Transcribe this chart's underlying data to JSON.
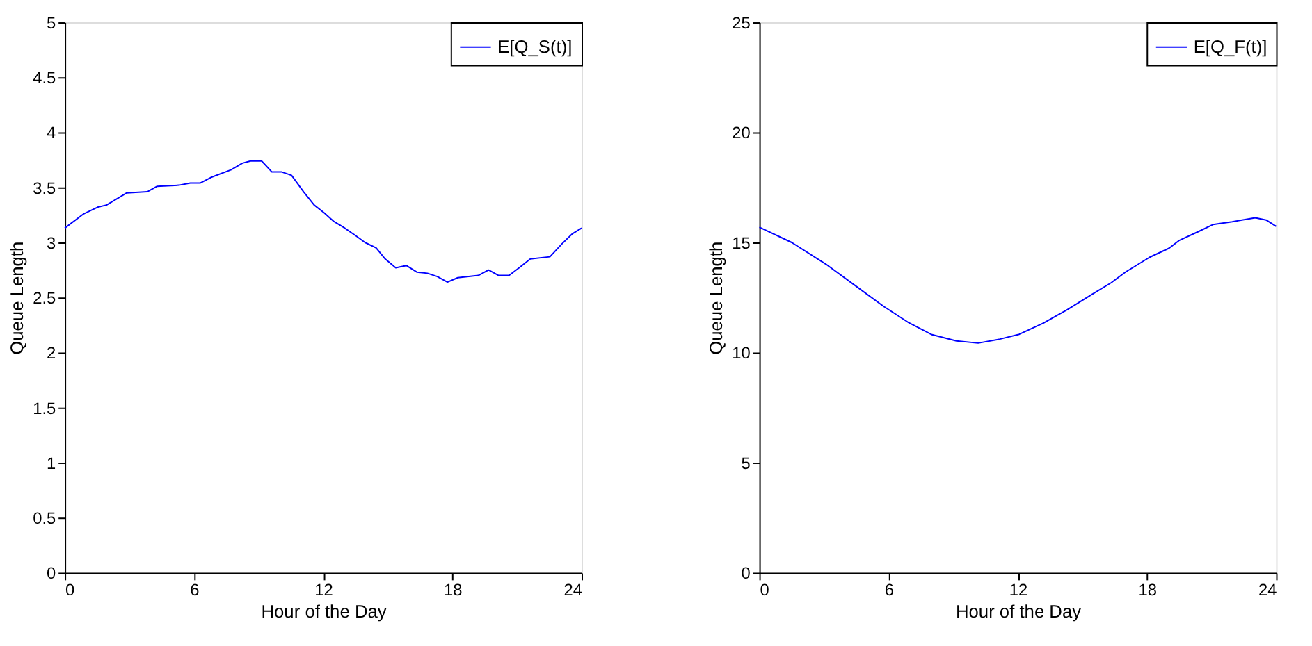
{
  "chart_data": [
    {
      "type": "line",
      "xlabel": "Hour of the Day",
      "ylabel": "Queue Length",
      "xlim": [
        0,
        24
      ],
      "xticks": [
        0,
        6,
        12,
        18,
        24
      ],
      "ylim": [
        0,
        5
      ],
      "yticks": [
        0,
        0.5,
        1,
        1.5,
        2,
        2.5,
        3,
        3.5,
        4,
        4.5,
        5
      ],
      "grid": false,
      "legend": "top right",
      "series": [
        {
          "name": "E[Q_S(t)]",
          "color": "#0000ff",
          "x": [
            0,
            0.88,
            1.52,
            1.94,
            2.88,
            3.83,
            4.29,
            5.3,
            5.83,
            6.3,
            6.78,
            7.73,
            8.25,
            8.63,
            9.14,
            9.62,
            10.08,
            10.53,
            11.09,
            11.58,
            12.04,
            12.5,
            12.93,
            13.52,
            13.94,
            14.46,
            14.88,
            15.37,
            15.87,
            16.36,
            16.84,
            17.3,
            17.77,
            18.25,
            19.2,
            19.68,
            20.15,
            20.63,
            21.1,
            21.62,
            22.53,
            23.1,
            23.58,
            24
          ],
          "values": [
            3.13,
            3.26,
            3.32,
            3.34,
            3.45,
            3.46,
            3.51,
            3.52,
            3.54,
            3.54,
            3.59,
            3.66,
            3.72,
            3.74,
            3.74,
            3.64,
            3.64,
            3.61,
            3.46,
            3.34,
            3.27,
            3.19,
            3.14,
            3.06,
            3.0,
            2.95,
            2.85,
            2.77,
            2.79,
            2.73,
            2.72,
            2.69,
            2.64,
            2.68,
            2.7,
            2.75,
            2.7,
            2.7,
            2.77,
            2.85,
            2.87,
            2.99,
            3.08,
            3.13
          ]
        }
      ]
    },
    {
      "type": "line",
      "xlabel": "Hour of the Day",
      "ylabel": "Queue Length",
      "xlim": [
        0,
        24
      ],
      "xticks": [
        0,
        6,
        12,
        18,
        24
      ],
      "ylim": [
        0,
        25
      ],
      "yticks": [
        0,
        5,
        10,
        15,
        20,
        25
      ],
      "grid": false,
      "legend": "top right",
      "series": [
        {
          "name": "E[Q_F(t)]",
          "color": "#0000ff",
          "x": [
            0,
            1.5,
            3.08,
            4.65,
            5.78,
            6.9,
            8.02,
            9.15,
            10.16,
            11.17,
            12.07,
            13.19,
            14.31,
            15.44,
            16.34,
            17.01,
            18.13,
            19.03,
            19.48,
            20.38,
            21.06,
            21.96,
            23.03,
            23.53,
            24
          ],
          "values": [
            15.69,
            15.0,
            14.02,
            12.9,
            12.09,
            11.38,
            10.81,
            10.53,
            10.43,
            10.61,
            10.83,
            11.34,
            11.95,
            12.64,
            13.17,
            13.66,
            14.33,
            14.74,
            15.08,
            15.49,
            15.81,
            15.94,
            16.12,
            16.02,
            15.73
          ]
        }
      ]
    }
  ]
}
